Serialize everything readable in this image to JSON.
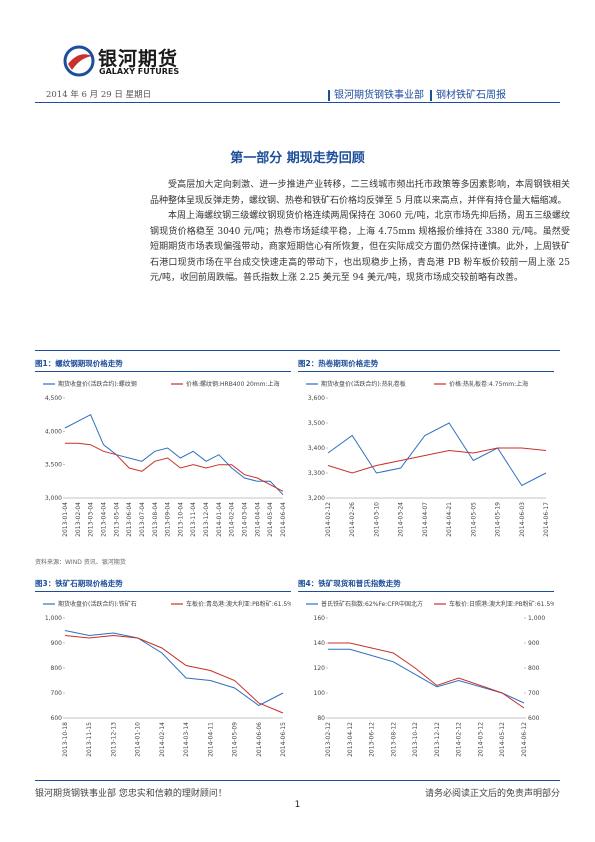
{
  "header": {
    "logo_cn": "银河期货",
    "logo_en": "GALAXY FUTURES",
    "date": "2014 年 6 月 29 日 星期日",
    "dept": "银河期货钢铁事业部",
    "report": "钢材铁矿石周报"
  },
  "section_title": "第一部分 期现走势回顾",
  "paragraphs": [
    "受高层加大定向刺激、进一步推进产业转移，二三线城市频出托市政策等多因素影响，本周钢铁相关品种整体呈现反弹走势，螺纹钢、热卷和铁矿石价格均反弹至 5 月底以来高点，并伴有持仓量大幅缩减。",
    "本周上海螺纹钢三级螺纹钢现货价格连续两周保持在 3060 元/吨，北京市场先抑后扬，周五三级螺纹钢现货价格稳至 3040 元/吨；热卷市场延续平稳，上海 4.75mm 规格报价维持在 3380 元/吨。虽然受短期期货市场表现偏强带动，商家短期信心有所恢复，但在实际成交方面仍然保持谨慎。此外，上周铁矿石港口现货市场在平台成交快速走高的带动下，也出现稳步上扬，青岛港 PB 粉车板价较前一周上涨 25 元/吨，收回前周跌幅。普氏指数上涨 2.25 美元至 94 美元/吨，现货市场成交较前略有改善。"
  ],
  "charts": [
    {
      "type": "line",
      "title": "图1：螺纹钢期现价格走势",
      "categories": [
        "2013-01-04",
        "2013-02-04",
        "2013-03-04",
        "2013-04-04",
        "2013-05-04",
        "2013-06-04",
        "2013-07-04",
        "2013-08-04",
        "2013-09-04",
        "2013-10-04",
        "2013-11-04",
        "2013-12-04",
        "2014-01-04",
        "2014-02-04",
        "2014-03-04",
        "2014-04-04",
        "2014-05-04",
        "2014-06-04"
      ],
      "series": [
        {
          "name": "期货收盘价(活跃合约):螺纹钢",
          "color": "#2f6fc0",
          "values": [
            4050,
            4150,
            4250,
            3800,
            3650,
            3600,
            3550,
            3700,
            3750,
            3600,
            3700,
            3550,
            3650,
            3450,
            3300,
            3250,
            3250,
            3050
          ]
        },
        {
          "name": "价格:螺纹钢:HRB400 20mm:上海",
          "color": "#c8302c",
          "values": [
            3820,
            3820,
            3800,
            3700,
            3650,
            3450,
            3400,
            3550,
            3600,
            3450,
            3500,
            3450,
            3500,
            3500,
            3350,
            3300,
            3200,
            3100
          ]
        }
      ],
      "ylim": [
        3000,
        4500
      ],
      "yticks": [
        {
          "value": 3000,
          "label": "3,000"
        },
        {
          "value": 3500,
          "label": "3,500"
        },
        {
          "value": 4000,
          "label": "4,000"
        },
        {
          "value": 4500,
          "label": "4,500"
        }
      ]
    },
    {
      "type": "line",
      "title": "图2：热卷期现价格走势",
      "categories": [
        "2014-02-12",
        "2014-02-26",
        "2014-03-10",
        "2014-03-24",
        "2014-04-07",
        "2014-04-21",
        "2014-05-05",
        "2014-05-19",
        "2014-06-03",
        "2014-06-17"
      ],
      "series": [
        {
          "name": "期货收盘价(活跃合约):热轧卷板",
          "color": "#2f6fc0",
          "values": [
            3380,
            3450,
            3300,
            3320,
            3450,
            3500,
            3350,
            3400,
            3250,
            3300
          ]
        },
        {
          "name": "价格:热轧板卷:4.75mm:上海",
          "color": "#c8302c",
          "values": [
            3330,
            3300,
            3330,
            3350,
            3370,
            3390,
            3380,
            3400,
            3400,
            3390
          ]
        }
      ],
      "ylim": [
        3200,
        3600
      ],
      "yticks": [
        {
          "value": 3200,
          "label": "3,200"
        },
        {
          "value": 3300,
          "label": "3,300"
        },
        {
          "value": 3400,
          "label": "3,400"
        },
        {
          "value": 3500,
          "label": "3,500"
        },
        {
          "value": 3600,
          "label": "3,600"
        }
      ]
    },
    {
      "type": "line",
      "title": "图3：铁矿石期现价格走势",
      "categories": [
        "2013-10-18",
        "2013-11-15",
        "2013-12-13",
        "2014-01-10",
        "2014-02-14",
        "2014-03-14",
        "2014-04-11",
        "2014-05-09",
        "2014-06-06",
        "2014-06-15"
      ],
      "series": [
        {
          "name": "期货收盘价(活跃合约):铁矿石",
          "color": "#2f6fc0",
          "values": [
            950,
            930,
            940,
            920,
            860,
            760,
            750,
            720,
            650,
            700
          ]
        },
        {
          "name": "车板价:青岛港:澳大利亚:PB粉矿:61.5%",
          "color": "#c8302c",
          "values": [
            930,
            920,
            930,
            920,
            880,
            810,
            790,
            750,
            660,
            620
          ]
        }
      ],
      "ylim": [
        600,
        1000
      ],
      "yticks": [
        600,
        700,
        800,
        900,
        {
          "value": 1000,
          "label": "1,000"
        }
      ]
    },
    {
      "type": "line",
      "title": "图4：铁矿现货和普氏指数走势",
      "categories": [
        "2013-02-12",
        "2013-04-12",
        "2013-06-12",
        "2013-08-12",
        "2013-10-12",
        "2013-12-12",
        "2014-02-12",
        "2014-03-12",
        "2014-05-12",
        "2014-06-12"
      ],
      "series": [
        {
          "name": "普氏铁矿石指数:62%Fe:CFR中国北方",
          "color": "#2f6fc0",
          "values": [
            135,
            135,
            130,
            125,
            115,
            105,
            110,
            105,
            100,
            92
          ]
        },
        {
          "name": "车板价:日照港:澳大利亚:PB粉矿:61.5%",
          "color": "#c8302c",
          "axis": "y2",
          "values": [
            900,
            900,
            880,
            860,
            800,
            730,
            760,
            730,
            700,
            640
          ]
        }
      ],
      "ylim": [
        80,
        160
      ],
      "yticks": [
        80,
        100,
        120,
        140,
        160
      ],
      "y2lim": [
        600,
        1000
      ],
      "y2ticks": [
        600,
        700,
        800,
        900,
        {
          "value": 1000,
          "label": "1,000"
        }
      ]
    }
  ],
  "source": "资料来源：WIND 资讯、银河期货",
  "footer": {
    "left": "银河期货钢铁事业部 您忠实和信赖的理财顾问！",
    "right": "请务必阅读正文后的免责声明部分",
    "page": "1"
  }
}
